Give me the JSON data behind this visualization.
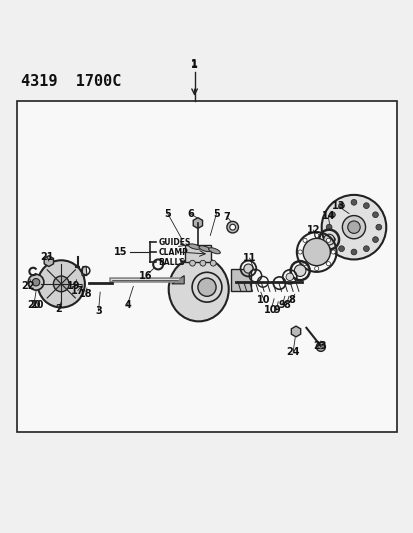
{
  "title_code": "4319  1700C",
  "bg_color": "#f0f0f0",
  "box_color": "#f8f8f8",
  "line_color": "#222222",
  "text_color": "#111111",
  "guides_label": "GUIDES",
  "clamp_label": "CLAMP",
  "balls_label": "BALLS"
}
